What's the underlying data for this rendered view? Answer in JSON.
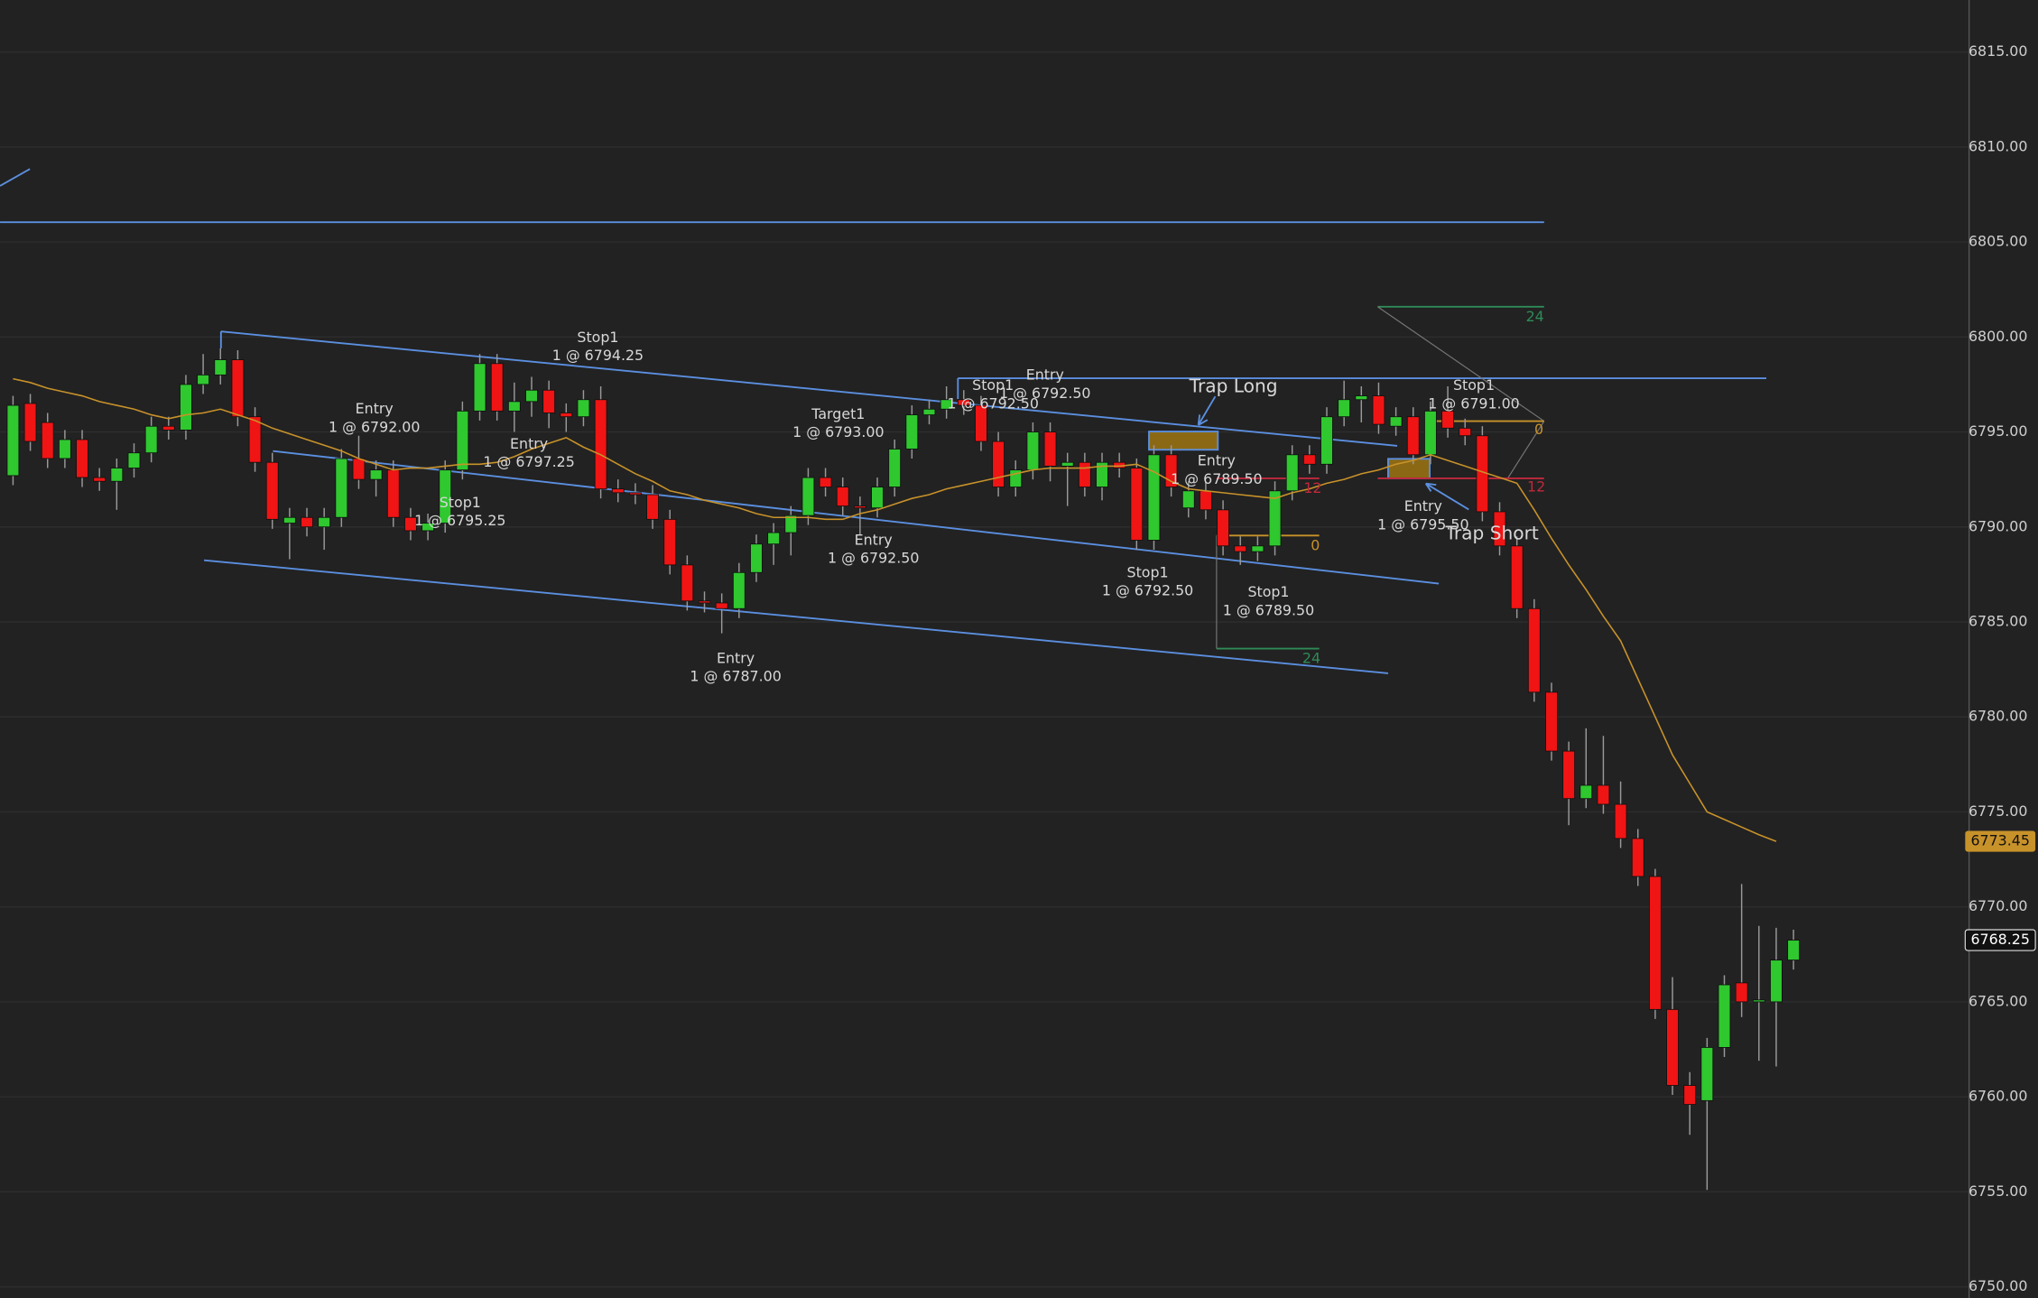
{
  "chart_data": {
    "type": "candlestick",
    "ylim": [
      6750,
      6815
    ],
    "yticks": [
      {
        "value": 6750,
        "label": "6750.00"
      },
      {
        "value": 6755,
        "label": "6755.00"
      },
      {
        "value": 6760,
        "label": "6760.00"
      },
      {
        "value": 6765,
        "label": "6765.00"
      },
      {
        "value": 6770,
        "label": "6770.00"
      },
      {
        "value": 6775,
        "label": "6775.00"
      },
      {
        "value": 6780,
        "label": "6780.00"
      },
      {
        "value": 6785,
        "label": "6785.00"
      },
      {
        "value": 6790,
        "label": "6790.00"
      },
      {
        "value": 6795,
        "label": "6795.00"
      },
      {
        "value": 6800,
        "label": "6800.00"
      },
      {
        "value": 6805,
        "label": "6805.00"
      },
      {
        "value": 6810,
        "label": "6810.00"
      },
      {
        "value": 6815,
        "label": "6815.00"
      }
    ],
    "grid": true,
    "up_color": "#2fc82f",
    "down_color": "#f01414",
    "open": [
      6792.7,
      6796.5,
      6795.5,
      6793.6,
      6794.6,
      6792.6,
      6792.4,
      6793.1,
      6793.9,
      6795.3,
      6795.1,
      6797.5,
      6798.0,
      6798.8,
      6795.8,
      6793.4,
      6790.2,
      6790.5,
      6790.0,
      6790.5,
      6793.6,
      6792.5,
      6793.0,
      6790.5,
      6789.8,
      6790.2,
      6793.0,
      6796.1,
      6798.6,
      6796.1,
      6796.6,
      6797.2,
      6796.0,
      6795.8,
      6796.7,
      6792.0,
      6791.8,
      6791.7,
      6790.4,
      6788.0,
      6786.1,
      6786.0,
      6785.7,
      6787.6,
      6789.1,
      6789.7,
      6790.6,
      6792.6,
      6792.1,
      6791.1,
      6791.0,
      6792.1,
      6794.1,
      6795.9,
      6796.2,
      6796.7,
      6796.4,
      6794.5,
      6792.1,
      6793.0,
      6795.0,
      6793.2,
      6793.4,
      6792.1,
      6793.4,
      6793.1,
      6789.3,
      6793.8,
      6791.0,
      6791.9,
      6790.9,
      6789.0,
      6788.7,
      6789.0,
      6791.9,
      6793.8,
      6793.3,
      6795.8,
      6796.7,
      6796.9,
      6795.3,
      6795.8,
      6793.8,
      6796.1,
      6795.2,
      6794.8,
      6790.8,
      6789.0,
      6785.7,
      6781.3,
      6778.2,
      6775.7,
      6776.4,
      6775.4,
      6773.6,
      6771.6,
      6764.6,
      6760.6,
      6759.8,
      6762.6,
      6766.0,
      6765.0,
      6765.0,
      6767.2
    ],
    "high": [
      6796.9,
      6797.0,
      6796.0,
      6795.1,
      6795.1,
      6793.1,
      6793.6,
      6794.4,
      6795.8,
      6795.8,
      6798.0,
      6799.1,
      6799.4,
      6799.3,
      6796.3,
      6793.9,
      6791.0,
      6791.0,
      6791.0,
      6794.1,
      6794.8,
      6793.5,
      6793.5,
      6791.0,
      6790.7,
      6793.5,
      6796.6,
      6799.1,
      6799.1,
      6797.6,
      6797.9,
      6797.7,
      6796.5,
      6797.2,
      6797.4,
      6792.5,
      6792.3,
      6792.2,
      6790.9,
      6788.5,
      6786.6,
      6786.5,
      6788.1,
      6789.6,
      6790.2,
      6791.1,
      6793.1,
      6793.1,
      6792.6,
      6791.6,
      6792.6,
      6794.6,
      6796.4,
      6796.7,
      6797.4,
      6797.2,
      6796.9,
      6795.0,
      6793.5,
      6795.5,
      6795.5,
      6793.9,
      6793.9,
      6793.9,
      6793.9,
      6793.6,
      6794.3,
      6794.3,
      6792.4,
      6792.4,
      6791.4,
      6789.5,
      6789.5,
      6792.4,
      6794.3,
      6794.3,
      6796.3,
      6797.7,
      6797.4,
      6797.6,
      6796.3,
      6796.3,
      6796.6,
      6797.4,
      6795.7,
      6795.3,
      6791.3,
      6789.5,
      6786.2,
      6781.8,
      6778.7,
      6779.4,
      6779.0,
      6776.6,
      6774.1,
      6772.0,
      6766.3,
      6761.3,
      6763.1,
      6766.4,
      6771.2,
      6769.0,
      6768.9,
      6768.8
    ],
    "low": [
      6792.2,
      6794.0,
      6793.1,
      6793.1,
      6792.1,
      6791.9,
      6790.9,
      6792.6,
      6793.4,
      6794.6,
      6794.6,
      6797.0,
      6797.5,
      6795.3,
      6792.9,
      6789.9,
      6788.3,
      6789.5,
      6788.8,
      6790.0,
      6792.0,
      6791.6,
      6790.0,
      6789.3,
      6789.3,
      6789.7,
      6792.5,
      6795.6,
      6795.6,
      6795.0,
      6795.8,
      6795.2,
      6795.0,
      6795.3,
      6791.5,
      6791.3,
      6791.2,
      6789.9,
      6787.5,
      6785.6,
      6785.5,
      6784.4,
      6785.2,
      6787.1,
      6788.0,
      6788.5,
      6790.1,
      6791.6,
      6790.6,
      6789.6,
      6790.5,
      6791.6,
      6793.6,
      6795.4,
      6795.7,
      6795.9,
      6794.0,
      6791.6,
      6791.6,
      6792.5,
      6792.4,
      6791.1,
      6791.6,
      6791.4,
      6792.6,
      6788.8,
      6788.8,
      6791.6,
      6790.5,
      6790.4,
      6788.5,
      6788.0,
      6788.2,
      6788.5,
      6791.4,
      6792.8,
      6792.8,
      6795.3,
      6795.5,
      6794.9,
      6794.8,
      6793.3,
      6793.3,
      6794.7,
      6794.3,
      6790.3,
      6788.5,
      6785.2,
      6780.8,
      6777.7,
      6774.3,
      6775.2,
      6774.9,
      6773.1,
      6771.1,
      6764.1,
      6760.1,
      6758.0,
      6755.1,
      6762.1,
      6764.2,
      6761.9,
      6761.6,
      6766.7
    ],
    "close": [
      6796.4,
      6794.5,
      6793.6,
      6794.6,
      6792.6,
      6792.4,
      6793.1,
      6793.9,
      6795.3,
      6795.1,
      6797.5,
      6798.0,
      6798.8,
      6795.8,
      6793.4,
      6790.4,
      6790.5,
      6790.0,
      6790.5,
      6793.6,
      6792.5,
      6793.0,
      6790.5,
      6789.8,
      6790.2,
      6793.0,
      6796.1,
      6798.6,
      6796.1,
      6796.6,
      6797.2,
      6796.0,
      6795.8,
      6796.7,
      6792.0,
      6791.8,
      6791.7,
      6790.4,
      6788.0,
      6786.1,
      6786.0,
      6785.7,
      6787.6,
      6789.1,
      6789.7,
      6790.6,
      6792.6,
      6792.1,
      6791.1,
      6791.0,
      6792.1,
      6794.1,
      6795.9,
      6796.2,
      6796.7,
      6796.4,
      6794.5,
      6792.1,
      6793.0,
      6795.0,
      6793.2,
      6793.4,
      6792.1,
      6793.4,
      6793.1,
      6789.3,
      6793.8,
      6792.1,
      6791.9,
      6790.9,
      6789.0,
      6788.7,
      6789.0,
      6791.9,
      6793.8,
      6793.3,
      6795.8,
      6796.7,
      6796.9,
      6795.4,
      6795.8,
      6793.8,
      6796.1,
      6795.2,
      6794.8,
      6790.8,
      6789.0,
      6785.7,
      6781.3,
      6778.2,
      6775.7,
      6776.4,
      6775.4,
      6773.6,
      6771.6,
      6764.6,
      6760.6,
      6759.6,
      6762.6,
      6765.9,
      6765.0,
      6765.1,
      6767.2,
      6768.25
    ],
    "line_overlay": {
      "color": "#c8922a",
      "values": [
        6797.8,
        6797.6,
        6797.3,
        6797.1,
        6796.9,
        6796.6,
        6796.4,
        6796.2,
        6795.9,
        6795.7,
        6795.9,
        6796.0,
        6796.2,
        6795.9,
        6795.6,
        6795.2,
        6794.9,
        6794.6,
        6794.3,
        6794.0,
        6793.6,
        6793.3,
        6793.0,
        6793.1,
        6793.1,
        6793.2,
        6793.3,
        6793.3,
        6793.4,
        6793.7,
        6794.1,
        6794.4,
        6794.7,
        6794.2,
        6793.8,
        6793.3,
        6792.8,
        6792.4,
        6791.9,
        6791.7,
        6791.4,
        6791.2,
        6791.0,
        6790.7,
        6790.5,
        6790.5,
        6790.5,
        6790.4,
        6790.4,
        6790.7,
        6790.9,
        6791.2,
        6791.5,
        6791.7,
        6792.0,
        6792.2,
        6792.4,
        6792.6,
        6792.8,
        6793.0,
        6793.1,
        6793.1,
        6793.1,
        6793.2,
        6793.2,
        6793.3,
        6792.9,
        6792.4,
        6792.0,
        6791.9,
        6791.8,
        6791.7,
        6791.6,
        6791.5,
        6791.8,
        6792.0,
        6792.3,
        6792.5,
        6792.8,
        6793.0,
        6793.3,
        6793.5,
        6793.8,
        6793.5,
        6793.2,
        6792.9,
        6792.6,
        6792.3,
        6790.9,
        6789.4,
        6788.0,
        6786.7,
        6785.3,
        6784.0,
        6782.0,
        6780.0,
        6778.0,
        6776.5,
        6775.0,
        6774.6,
        6774.2,
        6773.8,
        6773.45,
        null
      ]
    },
    "annotations": [
      "Stop1",
      "1 @ 6794.25",
      "Entry",
      "1 @ 6792.00",
      "Entry",
      "1 @ 6797.25",
      "Stop1",
      "1 @ 6795.25",
      "Target1",
      "1 @ 6793.00",
      "Entry",
      "1 @ 6792.50",
      "Entry",
      "1 @ 6787.00",
      "Stop1",
      "1 @ 6792.50",
      "Entry",
      "1 @ 6792.50",
      "Trap Long",
      "Entry",
      "1 @ 6789.50",
      "Stop1",
      "1 @ 6792.50",
      "Stop1",
      "1 @ 6789.50",
      "Stop1",
      "1 @ 6791.00",
      "Entry",
      "1 @ 6795.50",
      "Trap Short",
      "24",
      "12",
      "0",
      "0",
      "12",
      "24"
    ]
  }
}
